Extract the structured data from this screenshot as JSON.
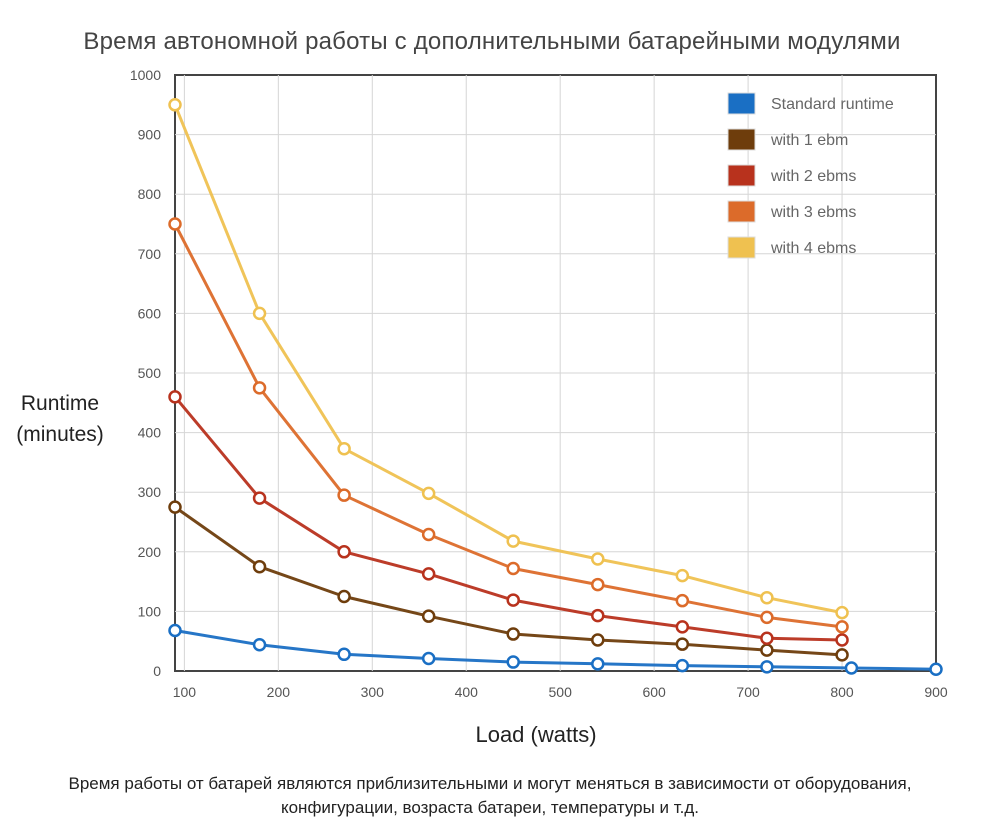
{
  "chart_data": {
    "type": "line",
    "title": "Время автономной работы с дополнительными батарейными модулями",
    "ylabel": "Runtime (minutes)",
    "xlabel": "Load (watts)",
    "xlim": [
      90,
      900
    ],
    "ylim": [
      0,
      1000
    ],
    "x_ticks": [
      100,
      200,
      300,
      400,
      500,
      600,
      700,
      800,
      900
    ],
    "y_ticks": [
      0,
      100,
      200,
      300,
      400,
      500,
      600,
      700,
      800,
      900,
      1000
    ],
    "legend_position": "top-right",
    "grid": true,
    "series": [
      {
        "name": "Standard runtime",
        "color": "#1a6fc4",
        "x": [
          90,
          180,
          270,
          360,
          450,
          540,
          630,
          720,
          810,
          900
        ],
        "y": [
          68,
          44,
          28,
          21,
          15,
          12,
          9,
          7,
          5,
          3
        ]
      },
      {
        "name": "with 1 ebm",
        "color": "#6e3d0c",
        "x": [
          90,
          180,
          270,
          360,
          450,
          540,
          630,
          720,
          800
        ],
        "y": [
          275,
          175,
          125,
          92,
          62,
          52,
          45,
          35,
          27
        ]
      },
      {
        "name": "with 2 ebms",
        "color": "#b8321d",
        "x": [
          90,
          180,
          270,
          360,
          450,
          540,
          630,
          720,
          800
        ],
        "y": [
          460,
          290,
          200,
          163,
          119,
          93,
          74,
          55,
          52
        ]
      },
      {
        "name": "with 3 ebms",
        "color": "#dc6b2a",
        "x": [
          90,
          180,
          270,
          360,
          450,
          540,
          630,
          720,
          800
        ],
        "y": [
          750,
          475,
          295,
          229,
          172,
          145,
          118,
          90,
          74
        ]
      },
      {
        "name": "with 4 ebms",
        "color": "#efc150",
        "x": [
          90,
          180,
          270,
          360,
          450,
          540,
          630,
          720,
          800
        ],
        "y": [
          950,
          600,
          373,
          298,
          218,
          188,
          160,
          123,
          98
        ]
      }
    ]
  },
  "caption": "Время работы от батарей являются приблизительными и могут меняться в зависимости от оборудования, конфигурации, возраста батареи, температуры и т.д."
}
